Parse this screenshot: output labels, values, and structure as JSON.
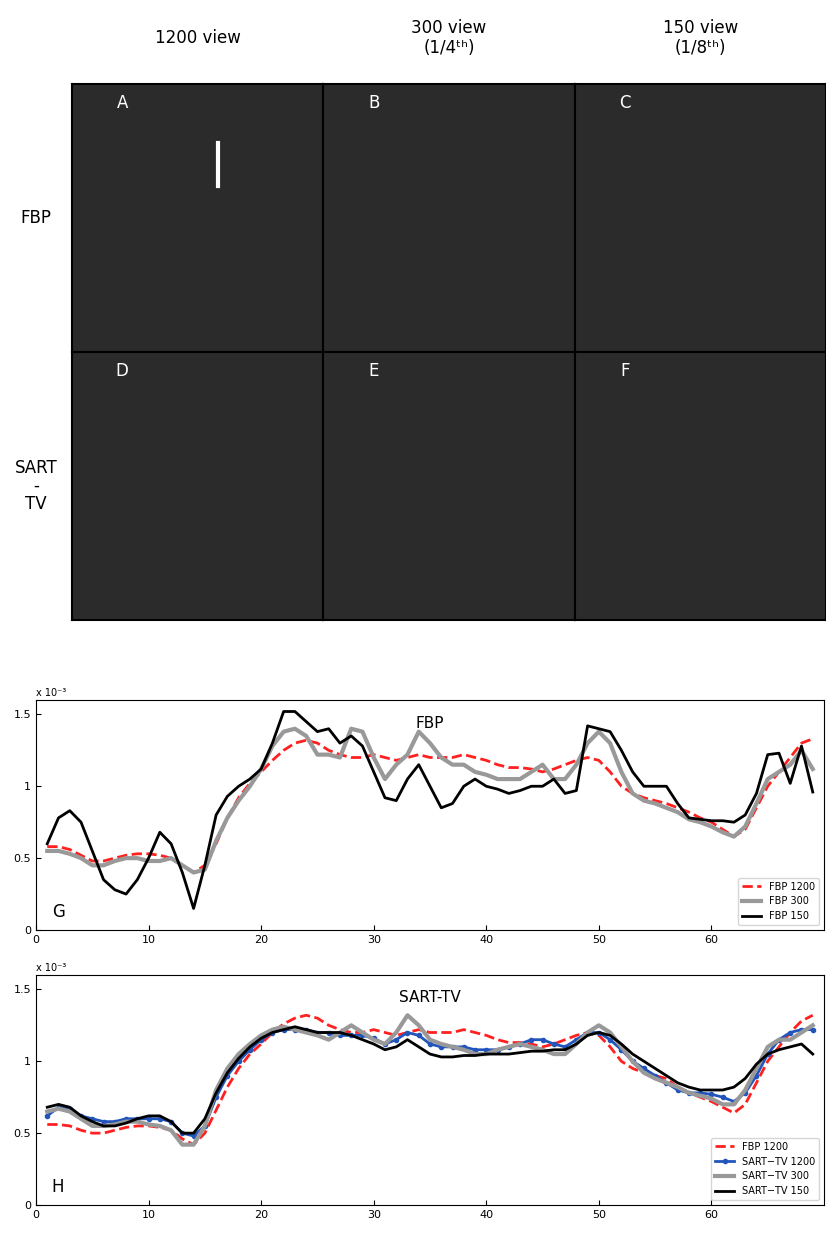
{
  "image_grid": {
    "column_titles": [
      "1200 view",
      "300 view\n(1/4ᵗʰ)",
      "150 view\n(1/8ᵗʰ)"
    ],
    "row_labels": [
      "FBP",
      "SART\n-\nTV"
    ],
    "panel_labels": [
      [
        "A",
        "B",
        "C"
      ],
      [
        "D",
        "E",
        "F"
      ]
    ]
  },
  "chart_data": [
    {
      "type": "line",
      "title": "FBP",
      "panel_label": "G",
      "axis_note": "x 10⁻³",
      "x": [
        1,
        2,
        3,
        4,
        5,
        6,
        7,
        8,
        9,
        10,
        11,
        12,
        13,
        14,
        15,
        16,
        17,
        18,
        19,
        20,
        21,
        22,
        23,
        24,
        25,
        26,
        27,
        28,
        29,
        30,
        31,
        32,
        33,
        34,
        35,
        36,
        37,
        38,
        39,
        40,
        41,
        42,
        43,
        44,
        45,
        46,
        47,
        48,
        49,
        50,
        51,
        52,
        53,
        54,
        55,
        56,
        57,
        58,
        59,
        60,
        61,
        62,
        63,
        64,
        65,
        66,
        67,
        68,
        69
      ],
      "xlim": [
        0,
        70
      ],
      "xticks": [
        0,
        10,
        20,
        30,
        40,
        50,
        60
      ],
      "ylim": [
        0,
        1.6
      ],
      "yticks": [
        0,
        0.5,
        1,
        1.5
      ],
      "legend": "lower right",
      "series": [
        {
          "name": "FBP 1200",
          "color": "#ff2020",
          "line_style": "dashed",
          "marker": "none",
          "values": [
            0.58,
            0.58,
            0.56,
            0.52,
            0.48,
            0.48,
            0.5,
            0.52,
            0.53,
            0.53,
            0.52,
            0.5,
            0.45,
            0.4,
            0.45,
            0.6,
            0.78,
            0.92,
            1.02,
            1.1,
            1.18,
            1.25,
            1.3,
            1.32,
            1.3,
            1.25,
            1.22,
            1.2,
            1.2,
            1.22,
            1.2,
            1.18,
            1.2,
            1.22,
            1.2,
            1.2,
            1.2,
            1.22,
            1.2,
            1.18,
            1.15,
            1.13,
            1.13,
            1.12,
            1.1,
            1.12,
            1.15,
            1.18,
            1.2,
            1.18,
            1.1,
            1.0,
            0.95,
            0.92,
            0.9,
            0.88,
            0.85,
            0.82,
            0.78,
            0.75,
            0.7,
            0.65,
            0.7,
            0.85,
            1.0,
            1.1,
            1.2,
            1.3,
            1.33
          ]
        },
        {
          "name": "FBP 300",
          "color": "#999999",
          "line_style": "solid",
          "marker": "none",
          "values": [
            0.55,
            0.55,
            0.53,
            0.5,
            0.45,
            0.45,
            0.48,
            0.5,
            0.5,
            0.48,
            0.48,
            0.5,
            0.45,
            0.4,
            0.42,
            0.62,
            0.78,
            0.9,
            1.0,
            1.12,
            1.28,
            1.38,
            1.4,
            1.35,
            1.22,
            1.22,
            1.2,
            1.4,
            1.38,
            1.2,
            1.05,
            1.15,
            1.22,
            1.38,
            1.3,
            1.2,
            1.15,
            1.15,
            1.1,
            1.08,
            1.05,
            1.05,
            1.05,
            1.1,
            1.15,
            1.05,
            1.05,
            1.15,
            1.3,
            1.38,
            1.3,
            1.1,
            0.95,
            0.9,
            0.88,
            0.85,
            0.82,
            0.77,
            0.75,
            0.72,
            0.68,
            0.65,
            0.72,
            0.88,
            1.05,
            1.1,
            1.15,
            1.25,
            1.12
          ]
        },
        {
          "name": "FBP 150",
          "color": "#000000",
          "line_style": "solid",
          "marker": "none",
          "values": [
            0.6,
            0.78,
            0.83,
            0.75,
            0.55,
            0.35,
            0.28,
            0.25,
            0.35,
            0.5,
            0.68,
            0.6,
            0.4,
            0.15,
            0.45,
            0.8,
            0.93,
            1.0,
            1.05,
            1.12,
            1.3,
            1.52,
            1.52,
            1.45,
            1.38,
            1.4,
            1.3,
            1.35,
            1.28,
            1.1,
            0.92,
            0.9,
            1.05,
            1.15,
            1.0,
            0.85,
            0.88,
            1.0,
            1.05,
            1.0,
            0.98,
            0.95,
            0.97,
            1.0,
            1.0,
            1.05,
            0.95,
            0.97,
            1.42,
            1.4,
            1.38,
            1.25,
            1.1,
            1.0,
            1.0,
            1.0,
            0.88,
            0.78,
            0.77,
            0.76,
            0.76,
            0.75,
            0.8,
            0.95,
            1.22,
            1.23,
            1.02,
            1.28,
            0.96
          ]
        }
      ]
    },
    {
      "type": "line",
      "title": "SART-TV",
      "panel_label": "H",
      "axis_note": "x 10⁻³",
      "x": [
        1,
        2,
        3,
        4,
        5,
        6,
        7,
        8,
        9,
        10,
        11,
        12,
        13,
        14,
        15,
        16,
        17,
        18,
        19,
        20,
        21,
        22,
        23,
        24,
        25,
        26,
        27,
        28,
        29,
        30,
        31,
        32,
        33,
        34,
        35,
        36,
        37,
        38,
        39,
        40,
        41,
        42,
        43,
        44,
        45,
        46,
        47,
        48,
        49,
        50,
        51,
        52,
        53,
        54,
        55,
        56,
        57,
        58,
        59,
        60,
        61,
        62,
        63,
        64,
        65,
        66,
        67,
        68,
        69
      ],
      "xlim": [
        0,
        70
      ],
      "xticks": [
        0,
        10,
        20,
        30,
        40,
        50,
        60
      ],
      "ylim": [
        0,
        1.6
      ],
      "yticks": [
        0,
        0.5,
        1,
        1.5
      ],
      "legend": "lower right",
      "series": [
        {
          "name": "FBP 1200",
          "color": "#ff2020",
          "line_style": "dashed",
          "marker": "none",
          "values": [
            0.56,
            0.56,
            0.55,
            0.52,
            0.5,
            0.5,
            0.52,
            0.54,
            0.55,
            0.55,
            0.54,
            0.52,
            0.46,
            0.42,
            0.5,
            0.66,
            0.82,
            0.95,
            1.05,
            1.12,
            1.2,
            1.26,
            1.3,
            1.32,
            1.3,
            1.25,
            1.22,
            1.2,
            1.2,
            1.22,
            1.2,
            1.18,
            1.2,
            1.22,
            1.2,
            1.2,
            1.2,
            1.22,
            1.2,
            1.18,
            1.15,
            1.13,
            1.13,
            1.12,
            1.1,
            1.12,
            1.15,
            1.18,
            1.2,
            1.18,
            1.1,
            1.0,
            0.95,
            0.92,
            0.9,
            0.88,
            0.82,
            0.78,
            0.75,
            0.72,
            0.68,
            0.64,
            0.7,
            0.85,
            1.0,
            1.1,
            1.2,
            1.28,
            1.32
          ]
        },
        {
          "name": "SART−TV 1200",
          "color": "#2255bb",
          "line_style": "solid",
          "marker": "o",
          "values": [
            0.62,
            0.68,
            0.67,
            0.62,
            0.6,
            0.58,
            0.58,
            0.6,
            0.6,
            0.6,
            0.6,
            0.58,
            0.5,
            0.48,
            0.55,
            0.75,
            0.9,
            1.0,
            1.08,
            1.15,
            1.2,
            1.22,
            1.22,
            1.22,
            1.2,
            1.2,
            1.18,
            1.18,
            1.18,
            1.16,
            1.12,
            1.15,
            1.2,
            1.18,
            1.12,
            1.1,
            1.1,
            1.1,
            1.08,
            1.08,
            1.08,
            1.1,
            1.12,
            1.15,
            1.15,
            1.12,
            1.1,
            1.15,
            1.2,
            1.2,
            1.15,
            1.08,
            1.0,
            0.95,
            0.9,
            0.85,
            0.8,
            0.78,
            0.78,
            0.77,
            0.75,
            0.72,
            0.78,
            0.9,
            1.05,
            1.15,
            1.2,
            1.22,
            1.22
          ]
        },
        {
          "name": "SART−TV 300",
          "color": "#999999",
          "line_style": "solid",
          "marker": "none",
          "values": [
            0.65,
            0.67,
            0.65,
            0.6,
            0.55,
            0.55,
            0.56,
            0.58,
            0.58,
            0.56,
            0.55,
            0.52,
            0.42,
            0.42,
            0.55,
            0.8,
            0.95,
            1.05,
            1.12,
            1.18,
            1.22,
            1.24,
            1.22,
            1.2,
            1.18,
            1.15,
            1.2,
            1.25,
            1.2,
            1.15,
            1.12,
            1.2,
            1.32,
            1.25,
            1.15,
            1.12,
            1.1,
            1.08,
            1.05,
            1.05,
            1.08,
            1.1,
            1.12,
            1.1,
            1.08,
            1.05,
            1.05,
            1.12,
            1.2,
            1.25,
            1.2,
            1.1,
            1.0,
            0.92,
            0.88,
            0.85,
            0.82,
            0.78,
            0.76,
            0.74,
            0.7,
            0.7,
            0.8,
            0.95,
            1.1,
            1.15,
            1.15,
            1.2,
            1.25
          ]
        },
        {
          "name": "SART−TV 150",
          "color": "#000000",
          "line_style": "solid",
          "marker": "none",
          "values": [
            0.68,
            0.7,
            0.68,
            0.62,
            0.58,
            0.55,
            0.55,
            0.57,
            0.6,
            0.62,
            0.62,
            0.58,
            0.5,
            0.5,
            0.6,
            0.78,
            0.92,
            1.02,
            1.1,
            1.16,
            1.2,
            1.22,
            1.24,
            1.22,
            1.2,
            1.2,
            1.2,
            1.18,
            1.15,
            1.12,
            1.08,
            1.1,
            1.15,
            1.1,
            1.05,
            1.03,
            1.03,
            1.04,
            1.04,
            1.05,
            1.05,
            1.05,
            1.06,
            1.07,
            1.07,
            1.08,
            1.08,
            1.12,
            1.18,
            1.2,
            1.18,
            1.12,
            1.05,
            1.0,
            0.95,
            0.9,
            0.85,
            0.82,
            0.8,
            0.8,
            0.8,
            0.82,
            0.88,
            0.98,
            1.05,
            1.08,
            1.1,
            1.12,
            1.05
          ]
        }
      ]
    }
  ]
}
